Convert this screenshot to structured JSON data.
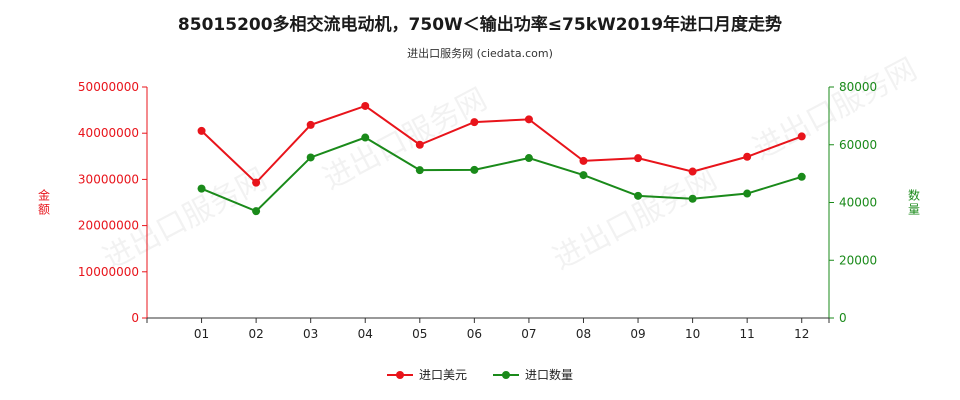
{
  "title": "85015200多相交流电动机，750W＜输出功率≤75kW2019年进口月度走势",
  "subtitle": "进出口服务网 (ciedata.com)",
  "watermark": "进出口服务网",
  "colors": {
    "left_series": "#e8141b",
    "right_series": "#1a8a1a",
    "axis_left": "#e8141b",
    "axis_right": "#1a8a1a"
  },
  "chart_data": {
    "type": "line",
    "title": "85015200多相交流电动机，750W＜输出功率≤75kW2019年进口月度走势",
    "categories": [
      "01",
      "02",
      "03",
      "04",
      "05",
      "06",
      "07",
      "08",
      "09",
      "10",
      "11",
      "12"
    ],
    "ylabel_left": "金额",
    "ylabel_right": "数量",
    "ylim_left": [
      0,
      50000000
    ],
    "ylim_right": [
      0,
      80000
    ],
    "yticks_left": [
      "0",
      "10000000",
      "20000000",
      "30000000",
      "40000000",
      "50000000"
    ],
    "yticks_right": [
      "0",
      "20000",
      "40000",
      "60000",
      "80000"
    ],
    "legend_position": "bottom",
    "grid": false,
    "series": [
      {
        "name": "进口美元",
        "axis": "left",
        "values": [
          40500000,
          29300000,
          41800000,
          45900000,
          37500000,
          42400000,
          43000000,
          34000000,
          34600000,
          31700000,
          34900000,
          39300000
        ]
      },
      {
        "name": "进口数量",
        "axis": "right",
        "values": [
          44800,
          37000,
          55600,
          62500,
          51200,
          51300,
          55400,
          49500,
          42300,
          41300,
          43100,
          48900
        ]
      }
    ]
  }
}
